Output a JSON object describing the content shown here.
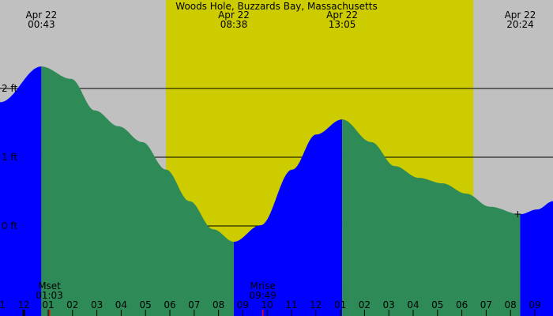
{
  "chart_data": {
    "type": "area",
    "title": "Woods Hole, Buzzards Bay, Massachusetts",
    "date": "Apr 22",
    "xunit": "hour of day",
    "yunit": "ft",
    "ylim_note": "",
    "y_ticks": [
      {
        "value": 2,
        "label": "2 ft"
      },
      {
        "value": 1,
        "label": "1 ft"
      },
      {
        "value": 0,
        "label": "0 ft"
      }
    ],
    "x_range_hours": [
      -0.98,
      21.75
    ],
    "x_tick_labels": [
      "11",
      "12",
      "01",
      "02",
      "03",
      "04",
      "05",
      "06",
      "07",
      "08",
      "09",
      "10",
      "11",
      "12",
      "01",
      "02",
      "03",
      "04",
      "05",
      "06",
      "07",
      "08",
      "09"
    ],
    "x_tick_hours": [
      -1,
      0,
      1,
      2,
      3,
      4,
      5,
      6,
      7,
      8,
      9,
      10,
      11,
      12,
      13,
      14,
      15,
      16,
      17,
      18,
      19,
      20,
      21
    ],
    "extremes": [
      {
        "type": "high",
        "date": "Apr 22",
        "time": "00:43",
        "hour": 0.72,
        "height": 2.32
      },
      {
        "type": "low",
        "date": "Apr 22",
        "time": "08:38",
        "hour": 8.63,
        "height": -0.23
      },
      {
        "type": "high",
        "date": "Apr 22",
        "time": "13:05",
        "hour": 13.08,
        "height": 1.55
      },
      {
        "type": "low",
        "date": "Apr 22",
        "time": "20:24",
        "hour": 20.4,
        "height": 0.17
      }
    ],
    "curve": [
      [
        -0.98,
        1.8
      ],
      [
        0.72,
        2.32
      ],
      [
        1.94,
        2.14
      ],
      [
        2.92,
        1.68
      ],
      [
        3.89,
        1.45
      ],
      [
        4.87,
        1.22
      ],
      [
        5.84,
        0.82
      ],
      [
        6.81,
        0.36
      ],
      [
        7.79,
        -0.05
      ],
      [
        8.63,
        -0.23
      ],
      [
        9.73,
        0.01
      ],
      [
        11.03,
        0.82
      ],
      [
        12.01,
        1.33
      ],
      [
        13.08,
        1.55
      ],
      [
        14.28,
        1.22
      ],
      [
        15.25,
        0.87
      ],
      [
        16.23,
        0.7
      ],
      [
        17.2,
        0.62
      ],
      [
        18.18,
        0.47
      ],
      [
        19.15,
        0.28
      ],
      [
        20.4,
        0.17
      ],
      [
        21.1,
        0.24
      ],
      [
        21.75,
        0.36
      ]
    ],
    "daylight": {
      "start_hour": 5.84,
      "end_hour": 18.47
    },
    "moon": [
      {
        "label": "Mset",
        "time": "01:03",
        "hour": 1.05
      },
      {
        "label": "Mrise",
        "time": "09:49",
        "hour": 9.82
      }
    ],
    "marker_hour": 20.3,
    "colors": {
      "night": "#c0c0c0",
      "day": "#cccc00",
      "rising": "#0000ff",
      "falling": "#2e8b57",
      "moon_tick": "#ff0000"
    }
  }
}
